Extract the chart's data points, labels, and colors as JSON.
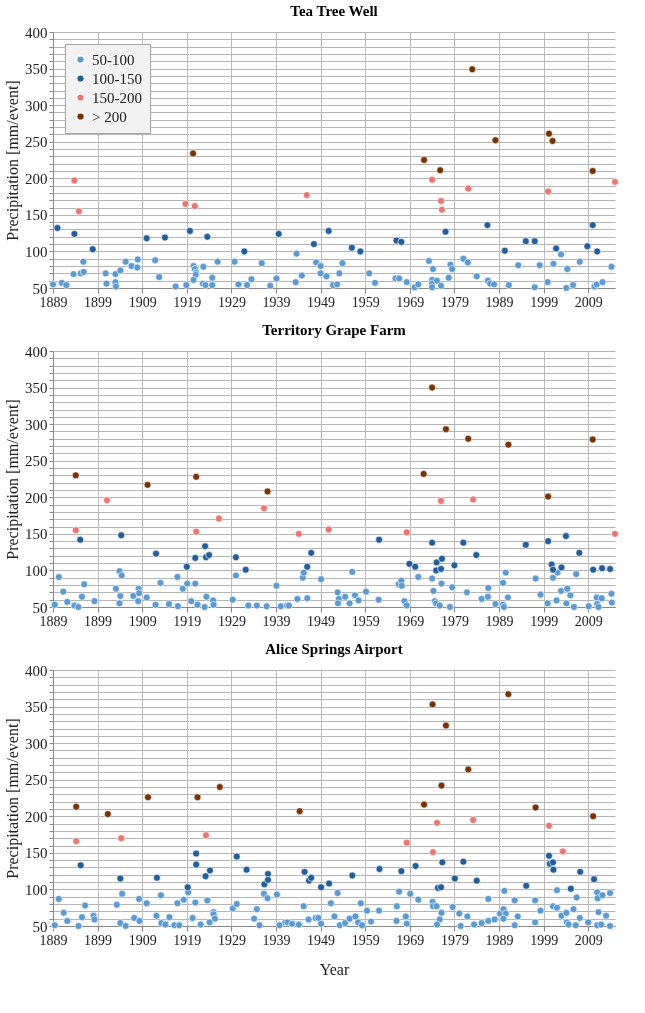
{
  "chart_data": [
    {
      "type": "scatter",
      "title": "Tea Tree Well",
      "ylabel": "Precipitation  [mm/event]",
      "xlim": [
        1889,
        2015
      ],
      "xticks": [
        1889,
        1899,
        1909,
        1919,
        1929,
        1939,
        1949,
        1959,
        1969,
        1979,
        1989,
        1999,
        2009
      ],
      "ylim": [
        50,
        400
      ],
      "yticks": [
        50,
        {
          "value": 60,
          "label": null
        },
        {
          "value": 70,
          "label": null
        },
        {
          "value": 80,
          "label": null
        },
        {
          "value": 90,
          "label": null
        },
        100,
        {
          "value": 110,
          "label": null
        },
        {
          "value": 120,
          "label": null
        },
        {
          "value": 130,
          "label": null
        },
        {
          "value": 140,
          "label": null
        },
        150,
        {
          "value": 160,
          "label": null
        },
        {
          "value": 170,
          "label": null
        },
        {
          "value": 180,
          "label": null
        },
        {
          "value": 190,
          "label": null
        },
        200,
        {
          "value": 210,
          "label": null
        },
        {
          "value": 220,
          "label": null
        },
        {
          "value": 230,
          "label": null
        },
        {
          "value": 240,
          "label": null
        },
        250,
        {
          "value": 260,
          "label": null
        },
        {
          "value": 270,
          "label": null
        },
        {
          "value": 280,
          "label": null
        },
        {
          "value": 290,
          "label": null
        },
        300,
        {
          "value": 310,
          "label": null
        },
        {
          "value": 320,
          "label": null
        },
        {
          "value": 330,
          "label": null
        },
        {
          "value": 340,
          "label": null
        },
        350,
        {
          "value": 360,
          "label": null
        },
        {
          "value": 370,
          "label": null
        },
        {
          "value": 380,
          "label": null
        },
        {
          "value": 390,
          "label": null
        },
        400
      ],
      "grid": true,
      "legend": "top left",
      "marker": "circle",
      "series": [
        {
          "name": "50-100",
          "color": "#5b9bd5",
          "x": [
            1889.0,
            1891.0,
            1892.0,
            1893.6,
            1895.2,
            1895.9,
            1895.8,
            1900.8,
            1901.0,
            1903.0,
            1903.0,
            1903.1,
            1904.1,
            1905.3,
            1906.6,
            1907.9,
            1908.0,
            1911.9,
            1912.8,
            1916.5,
            1918.9,
            1920.5,
            1920.8,
            1921.1,
            1921.0,
            1920.5,
            1922.7,
            1922.6,
            1923.2,
            1924.7,
            1924.7,
            1925.9,
            1929.7,
            1930.6,
            1932.5,
            1933.5,
            1935.8,
            1937.7,
            1939.1,
            1943.4,
            1943.6,
            1944.8,
            1948.0,
            1949.0,
            1949.0,
            1950.3,
            1951.8,
            1952.7,
            1953.2,
            1953.9,
            1959.9,
            1961.2,
            1965.8,
            1966.6,
            1968.3,
            1970.1,
            1970.9,
            1973.3,
            1974.2,
            1974.0,
            1974.0,
            1974.0,
            1975.1,
            1976.0,
            1977.7,
            1978.1,
            1978.5,
            1981.0,
            1982.0,
            1984.0,
            1986.5,
            1987.0,
            1987.9,
            1991.2,
            1993.3,
            1997.0,
            1998.1,
            1999.9,
            2001.2,
            2002.9,
            2004.3,
            2004.1,
            2005.6,
            2007.1,
            2010.4,
            2010.9,
            2012.2,
            2014.2
          ],
          "values": [
            55,
            57,
            54,
            69,
            70,
            72,
            86,
            70,
            56,
            69,
            58,
            52,
            74,
            86,
            80,
            78,
            89,
            88,
            65,
            52,
            54,
            80,
            76,
            71,
            68,
            61,
            79,
            56,
            54,
            64,
            54,
            86,
            86,
            55,
            54,
            62,
            84,
            53,
            63,
            58,
            97,
            67,
            85,
            80,
            70,
            66,
            54,
            55,
            70,
            84,
            70,
            57,
            63,
            63,
            58,
            51,
            55,
            87,
            76,
            61,
            56,
            51,
            60,
            53,
            64,
            82,
            76,
            90,
            85,
            66,
            60,
            56,
            55,
            54,
            81,
            51,
            81,
            58,
            83,
            96,
            76,
            50,
            54,
            86,
            52,
            55,
            58,
            79
          ]
        },
        {
          "name": "100-150",
          "color": "#1f5f9f",
          "x": [
            1890.0,
            1893.8,
            1897.9,
            1910.0,
            1914.1,
            1919.7,
            1923.6,
            1931.9,
            1939.6,
            1947.5,
            1950.8,
            1956.0,
            1957.9,
            1966.0,
            1967.1,
            1977.0,
            1986.4,
            1990.3,
            1995.0,
            1997.0,
            2001.8,
            2008.8,
            2010.0,
            2011.0
          ],
          "values": [
            132,
            124,
            103,
            118,
            119,
            128,
            120,
            100,
            124,
            110,
            128,
            105,
            100,
            115,
            113,
            127,
            136,
            101,
            114,
            114,
            104,
            107,
            136,
            100
          ]
        },
        {
          "name": "150-200",
          "color": "#f07470",
          "x": [
            1893.8,
            1894.8,
            1918.7,
            1920.8,
            1945.9,
            1974.0,
            1976.0,
            1976.2,
            1982.1,
            2000.0,
            2015.0
          ],
          "values": [
            197,
            155,
            165,
            162,
            177,
            198,
            169,
            157,
            186,
            182,
            195
          ]
        },
        {
          "name": "> 200",
          "color": "#7b3200",
          "x": [
            1920.4,
            1972.2,
            1975.8,
            1983.0,
            1988.2,
            2000.2,
            2001.0,
            2010.0
          ],
          "values": [
            234,
            225,
            211,
            349,
            252,
            261,
            251,
            210
          ]
        }
      ]
    },
    {
      "type": "scatter",
      "title": "Territory Grape Farm",
      "ylabel": "Precipitation  [mm/event]",
      "xlim": [
        1889,
        2015
      ],
      "xticks": [
        1889,
        1899,
        1909,
        1919,
        1929,
        1939,
        1949,
        1959,
        1969,
        1979,
        1989,
        1999,
        2009
      ],
      "ylim": [
        50,
        400
      ],
      "yticks": [
        50,
        {
          "value": 60,
          "label": null
        },
        {
          "value": 70,
          "label": null
        },
        {
          "value": 80,
          "label": null
        },
        {
          "value": 90,
          "label": null
        },
        100,
        {
          "value": 110,
          "label": null
        },
        {
          "value": 120,
          "label": null
        },
        {
          "value": 130,
          "label": null
        },
        {
          "value": 140,
          "label": null
        },
        150,
        {
          "value": 160,
          "label": null
        },
        {
          "value": 170,
          "label": null
        },
        {
          "value": 180,
          "label": null
        },
        {
          "value": 190,
          "label": null
        },
        200,
        {
          "value": 210,
          "label": null
        },
        {
          "value": 220,
          "label": null
        },
        {
          "value": 230,
          "label": null
        },
        {
          "value": 240,
          "label": null
        },
        250,
        {
          "value": 260,
          "label": null
        },
        {
          "value": 270,
          "label": null
        },
        {
          "value": 280,
          "label": null
        },
        {
          "value": 290,
          "label": null
        },
        300,
        {
          "value": 310,
          "label": null
        },
        {
          "value": 320,
          "label": null
        },
        {
          "value": 330,
          "label": null
        },
        {
          "value": 340,
          "label": null
        },
        350,
        {
          "value": 360,
          "label": null
        },
        {
          "value": 370,
          "label": null
        },
        {
          "value": 380,
          "label": null
        },
        {
          "value": 390,
          "label": null
        },
        400
      ],
      "grid": true,
      "legend": "top left",
      "marker": "circle",
      "series": [
        {
          "name": "50-100",
          "color": "#5b9bd5",
          "x": [
            1889.4,
            1890.3,
            1891.3,
            1892.2,
            1893.8,
            1894.7,
            1895.5,
            1896.0,
            1898.3,
            1903.1,
            1903.9,
            1904.4,
            1904.1,
            1903.9,
            1907.0,
            1908.2,
            1908.3,
            1908.1,
            1910.0,
            1912.0,
            1913.1,
            1915.0,
            1917.0,
            1916.9,
            1918.1,
            1919.1,
            1920.0,
            1920.9,
            1921.4,
            1923.0,
            1923.4,
            1924.9,
            1925.0,
            1929.3,
            1930.0,
            1932.8,
            1934.7,
            1936.9,
            1939.1,
            1940.1,
            1941.5,
            1941.9,
            1943.8,
            1945.0,
            1945.2,
            1946.0,
            1949.1,
            1952.8,
            1953.1,
            1952.9,
            1954.5,
            1955.5,
            1956.1,
            1956.7,
            1957.5,
            1959.2,
            1962.0,
            1966.5,
            1967.1,
            1967.2,
            1967.8,
            1968.3,
            1970.9,
            1974.0,
            1974.3,
            1974.6,
            1974.9,
            1975.7,
            1976.1,
            1978.0,
            1978.5,
            1981.8,
            1985.1,
            1986.5,
            1986.6,
            1988.2,
            1989.9,
            1990.1,
            1989.9,
            1990.5,
            1991.0,
            1997.2,
            1998.3,
            1999.9,
            2001.1,
            2002.1,
            2001.9,
            2002.9,
            2004.3,
            2004.1,
            2005.0,
            2005.8,
            2006.3,
            2009.1,
            2010.9,
            2011.0,
            2012.0,
            2011.3,
            2014.2,
            2014.3
          ],
          "values": [
            53,
            91,
            71,
            57,
            52,
            50,
            64,
            81,
            58,
            75,
            99,
            93,
            65,
            55,
            65,
            75,
            69,
            58,
            63,
            53,
            83,
            54,
            51,
            91,
            75,
            82,
            58,
            82,
            53,
            50,
            64,
            59,
            53,
            60,
            93,
            52,
            52,
            51,
            79,
            51,
            52,
            52,
            61,
            90,
            97,
            62,
            88,
            70,
            61,
            55,
            64,
            55,
            98,
            66,
            59,
            71,
            60,
            81,
            86,
            79,
            58,
            52,
            91,
            89,
            72,
            58,
            55,
            52,
            82,
            50,
            77,
            70,
            61,
            64,
            76,
            54,
            53,
            50,
            83,
            97,
            63,
            89,
            67,
            55,
            90,
            97,
            59,
            72,
            75,
            55,
            66,
            50,
            95,
            51,
            63,
            54,
            62,
            50,
            68,
            56
          ]
        },
        {
          "name": "100-150",
          "color": "#1f5f9f",
          "x": [
            1895.1,
            1904.3,
            1912.1,
            1919.0,
            1920.9,
            1923.1,
            1923.3,
            1924.0,
            1930.0,
            1932.2,
            1946.9,
            1946.0,
            1962.1,
            1968.9,
            1970.2,
            1974.0,
            1975.0,
            1976.2,
            1974.9,
            1976.0,
            1979.0,
            1981.0,
            1983.9,
            1995.0,
            2000.0,
            2004.0,
            2000.8,
            2001.1,
            2003.0,
            2007.0,
            2010.1,
            2012.1,
            2013.9
          ],
          "values": [
            142,
            148,
            123,
            105,
            117,
            133,
            118,
            121,
            118,
            101,
            124,
            105,
            142,
            109,
            105,
            138,
            111,
            116,
            100,
            102,
            107,
            138,
            121,
            135,
            140,
            147,
            108,
            101,
            104,
            124,
            101,
            103,
            102
          ]
        },
        {
          "name": "150-200",
          "color": "#f07470",
          "x": [
            1894.1,
            1901.1,
            1921.1,
            1926.2,
            1936.3,
            1944.1,
            1950.8,
            1968.3,
            1976.0,
            1983.2,
            2015.0
          ],
          "values": [
            155,
            196,
            153,
            171,
            185,
            150,
            156,
            152,
            195,
            197,
            150
          ]
        },
        {
          "name": "> 200",
          "color": "#7b3200",
          "x": [
            1894.1,
            1910.2,
            1921.1,
            1937.1,
            1972.1,
            1974.0,
            1977.1,
            1982.1,
            1991.1,
            2000.0,
            2010.0
          ],
          "values": [
            230,
            217,
            228,
            208,
            232,
            350,
            293,
            280,
            272,
            201,
            279
          ]
        }
      ]
    },
    {
      "type": "scatter",
      "title": "Alice Springs Airport",
      "xlabel": "Year",
      "ylabel": "Precipitation  [mm/event]",
      "xlim": [
        1889,
        2015
      ],
      "xticks": [
        1889,
        1899,
        1909,
        1919,
        1929,
        1939,
        1949,
        1959,
        1969,
        1979,
        1989,
        1999,
        2009
      ],
      "ylim": [
        50,
        400
      ],
      "yticks": [
        50,
        {
          "value": 60,
          "label": null
        },
        {
          "value": 70,
          "label": null
        },
        {
          "value": 80,
          "label": null
        },
        {
          "value": 90,
          "label": null
        },
        100,
        {
          "value": 110,
          "label": null
        },
        {
          "value": 120,
          "label": null
        },
        {
          "value": 130,
          "label": null
        },
        {
          "value": 140,
          "label": null
        },
        150,
        {
          "value": 160,
          "label": null
        },
        {
          "value": 170,
          "label": null
        },
        {
          "value": 180,
          "label": null
        },
        {
          "value": 190,
          "label": null
        },
        200,
        {
          "value": 210,
          "label": null
        },
        {
          "value": 220,
          "label": null
        },
        {
          "value": 230,
          "label": null
        },
        {
          "value": 240,
          "label": null
        },
        250,
        {
          "value": 260,
          "label": null
        },
        {
          "value": 270,
          "label": null
        },
        {
          "value": 280,
          "label": null
        },
        {
          "value": 290,
          "label": null
        },
        300,
        {
          "value": 310,
          "label": null
        },
        {
          "value": 320,
          "label": null
        },
        {
          "value": 330,
          "label": null
        },
        {
          "value": 340,
          "label": null
        },
        350,
        {
          "value": 360,
          "label": null
        },
        {
          "value": 370,
          "label": null
        },
        {
          "value": 380,
          "label": null
        },
        {
          "value": 390,
          "label": null
        },
        400
      ],
      "grid": true,
      "legend": "top left",
      "marker": "circle",
      "series": [
        {
          "name": "50-100",
          "color": "#5b9bd5",
          "x": [
            1889.4,
            1890.3,
            1891.4,
            1892.2,
            1894.7,
            1895.5,
            1896.2,
            1898.1,
            1898.3,
            1903.3,
            1904.5,
            1904.1,
            1905.3,
            1907.2,
            1908.3,
            1908.4,
            1910.0,
            1912.2,
            1913.2,
            1913.3,
            1914.2,
            1915.1,
            1916.2,
            1916.9,
            1917.3,
            1918.3,
            1919.3,
            1920.3,
            1920.9,
            1922.1,
            1923.6,
            1924.1,
            1925.0,
            1925.0,
            1925.3,
            1929.3,
            1930.2,
            1934.1,
            1934.7,
            1935.3,
            1936.3,
            1937.1,
            1939.2,
            1939.8,
            1941.1,
            1941.6,
            1942.6,
            1944.1,
            1945.2,
            1946.3,
            1947.9,
            1948.5,
            1949.1,
            1951.3,
            1952.1,
            1952.8,
            1953.3,
            1954.5,
            1955.5,
            1956.8,
            1957.4,
            1958.0,
            1958.3,
            1959.4,
            1960.3,
            1962.1,
            1966.0,
            1966.1,
            1966.6,
            1968.1,
            1968.3,
            1969.1,
            1970.9,
            1974.1,
            1974.2,
            1975.0,
            1976.1,
            1975.7,
            1975.1,
            1978.6,
            1980.1,
            1980.4,
            1981.9,
            1983.4,
            1985.1,
            1986.6,
            1986.6,
            1988.0,
            1989.2,
            1990.0,
            1990.2,
            1990.5,
            1990.0,
            1992.5,
            1992.5,
            1993.2,
            1997.1,
            1997.1,
            1998.3,
            2002.0,
            2001.1,
            2002.0,
            2003.0,
            2004.1,
            2004.2,
            2004.6,
            2005.7,
            2006.4,
            2006.2,
            2007.1,
            2009.0,
            2011.0,
            2011.1,
            2012.2,
            2011.3,
            2011.0,
            2011.9,
            2013.0,
            2013.9,
            2013.9
          ],
          "values": [
            51,
            87,
            68,
            57,
            50,
            62,
            78,
            64,
            59,
            79,
            94,
            54,
            50,
            61,
            87,
            57,
            81,
            64,
            92,
            54,
            52,
            62,
            51,
            81,
            51,
            86,
            96,
            61,
            82,
            52,
            85,
            55,
            69,
            66,
            60,
            74,
            80,
            60,
            73,
            51,
            94,
            88,
            93,
            51,
            55,
            55,
            53,
            52,
            77,
            59,
            61,
            61,
            53,
            81,
            63,
            95,
            51,
            54,
            60,
            63,
            55,
            81,
            51,
            71,
            56,
            71,
            57,
            77,
            97,
            63,
            53,
            94,
            86,
            83,
            77,
            77,
            68,
            59,
            52,
            76,
            67,
            50,
            63,
            52,
            54,
            87,
            57,
            59,
            67,
            73,
            98,
            67,
            60,
            51,
            85,
            63,
            85,
            55,
            71,
            99,
            77,
            75,
            64,
            68,
            55,
            52,
            73,
            89,
            51,
            61,
            55,
            96,
            88,
            92,
            69,
            51,
            52,
            64,
            95,
            50
          ]
        },
        {
          "name": "100-150",
          "color": "#1f5f9f",
          "x": [
            1895.2,
            1904.1,
            1912.3,
            1919.2,
            1921.1,
            1921.1,
            1923.2,
            1924.2,
            1930.2,
            1932.4,
            1936.4,
            1937.2,
            1937.2,
            1945.4,
            1946.4,
            1946.9,
            1949.1,
            1950.9,
            1956.1,
            1962.2,
            1967.1,
            1970.3,
            1976.3,
            1975.3,
            1976.0,
            1979.1,
            1981.0,
            1984.0,
            1995.1,
            2000.2,
            2000.4,
            2001.1,
            2001.2,
            2005.1,
            2007.2,
            2010.3
          ],
          "values": [
            133,
            115,
            116,
            103,
            149,
            134,
            118,
            126,
            145,
            127,
            107,
            121,
            113,
            124,
            112,
            116,
            103,
            108,
            119,
            128,
            125,
            132,
            137,
            102,
            103,
            115,
            138,
            112,
            105,
            146,
            135,
            137,
            127,
            101,
            124,
            114
          ]
        },
        {
          "name": "150-200",
          "color": "#f07470",
          "x": [
            1894.2,
            1904.3,
            1923.3,
            1968.3,
            1974.2,
            1975.1,
            1983.2,
            2000.2,
            2003.3
          ],
          "values": [
            166,
            170,
            174,
            164,
            151,
            191,
            195,
            187,
            152
          ]
        },
        {
          "name": "> 200",
          "color": "#7b3200",
          "x": [
            1894.2,
            1901.3,
            1910.3,
            1921.4,
            1926.4,
            1944.3,
            1972.2,
            1974.1,
            1976.1,
            1977.1,
            1982.1,
            1991.1,
            1997.2,
            2010.1
          ],
          "values": [
            213,
            203,
            226,
            226,
            240,
            207,
            216,
            353,
            242,
            324,
            264,
            367,
            212,
            200
          ]
        }
      ]
    }
  ]
}
